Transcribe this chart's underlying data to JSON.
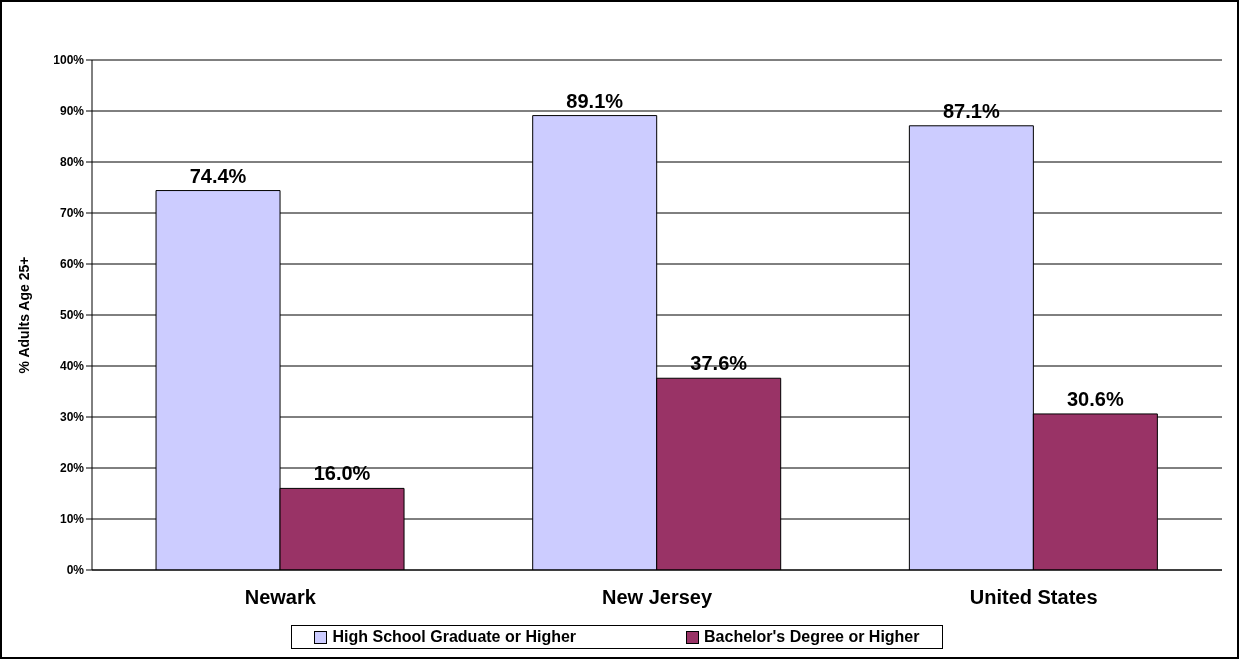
{
  "chart_data": {
    "type": "bar",
    "ylabel": "% Adults Age 25+",
    "categories": [
      "Newark",
      "New Jersey",
      "United States"
    ],
    "series": [
      {
        "name": "High School Graduate or Higher",
        "color": "#ccccff",
        "values": [
          74.4,
          89.1,
          87.1
        ],
        "value_labels": [
          "74.4%",
          "89.1%",
          "87.1%"
        ]
      },
      {
        "name": "Bachelor's Degree or Higher",
        "color": "#993366",
        "values": [
          16.0,
          37.6,
          30.6
        ],
        "value_labels": [
          "16.0%",
          "37.6%",
          "30.6%"
        ]
      }
    ],
    "ylim": [
      0,
      100
    ],
    "yticks": [
      {
        "value": 0,
        "label": "0%"
      },
      {
        "value": 10,
        "label": "10%"
      },
      {
        "value": 20,
        "label": "20%"
      },
      {
        "value": 30,
        "label": "30%"
      },
      {
        "value": 40,
        "label": "40%"
      },
      {
        "value": 50,
        "label": "50%"
      },
      {
        "value": 60,
        "label": "60%"
      },
      {
        "value": 70,
        "label": "70%"
      },
      {
        "value": 80,
        "label": "80%"
      },
      {
        "value": 90,
        "label": "90%"
      },
      {
        "value": 100,
        "label": "100%"
      }
    ],
    "grid": "y",
    "legend": "bottom"
  }
}
